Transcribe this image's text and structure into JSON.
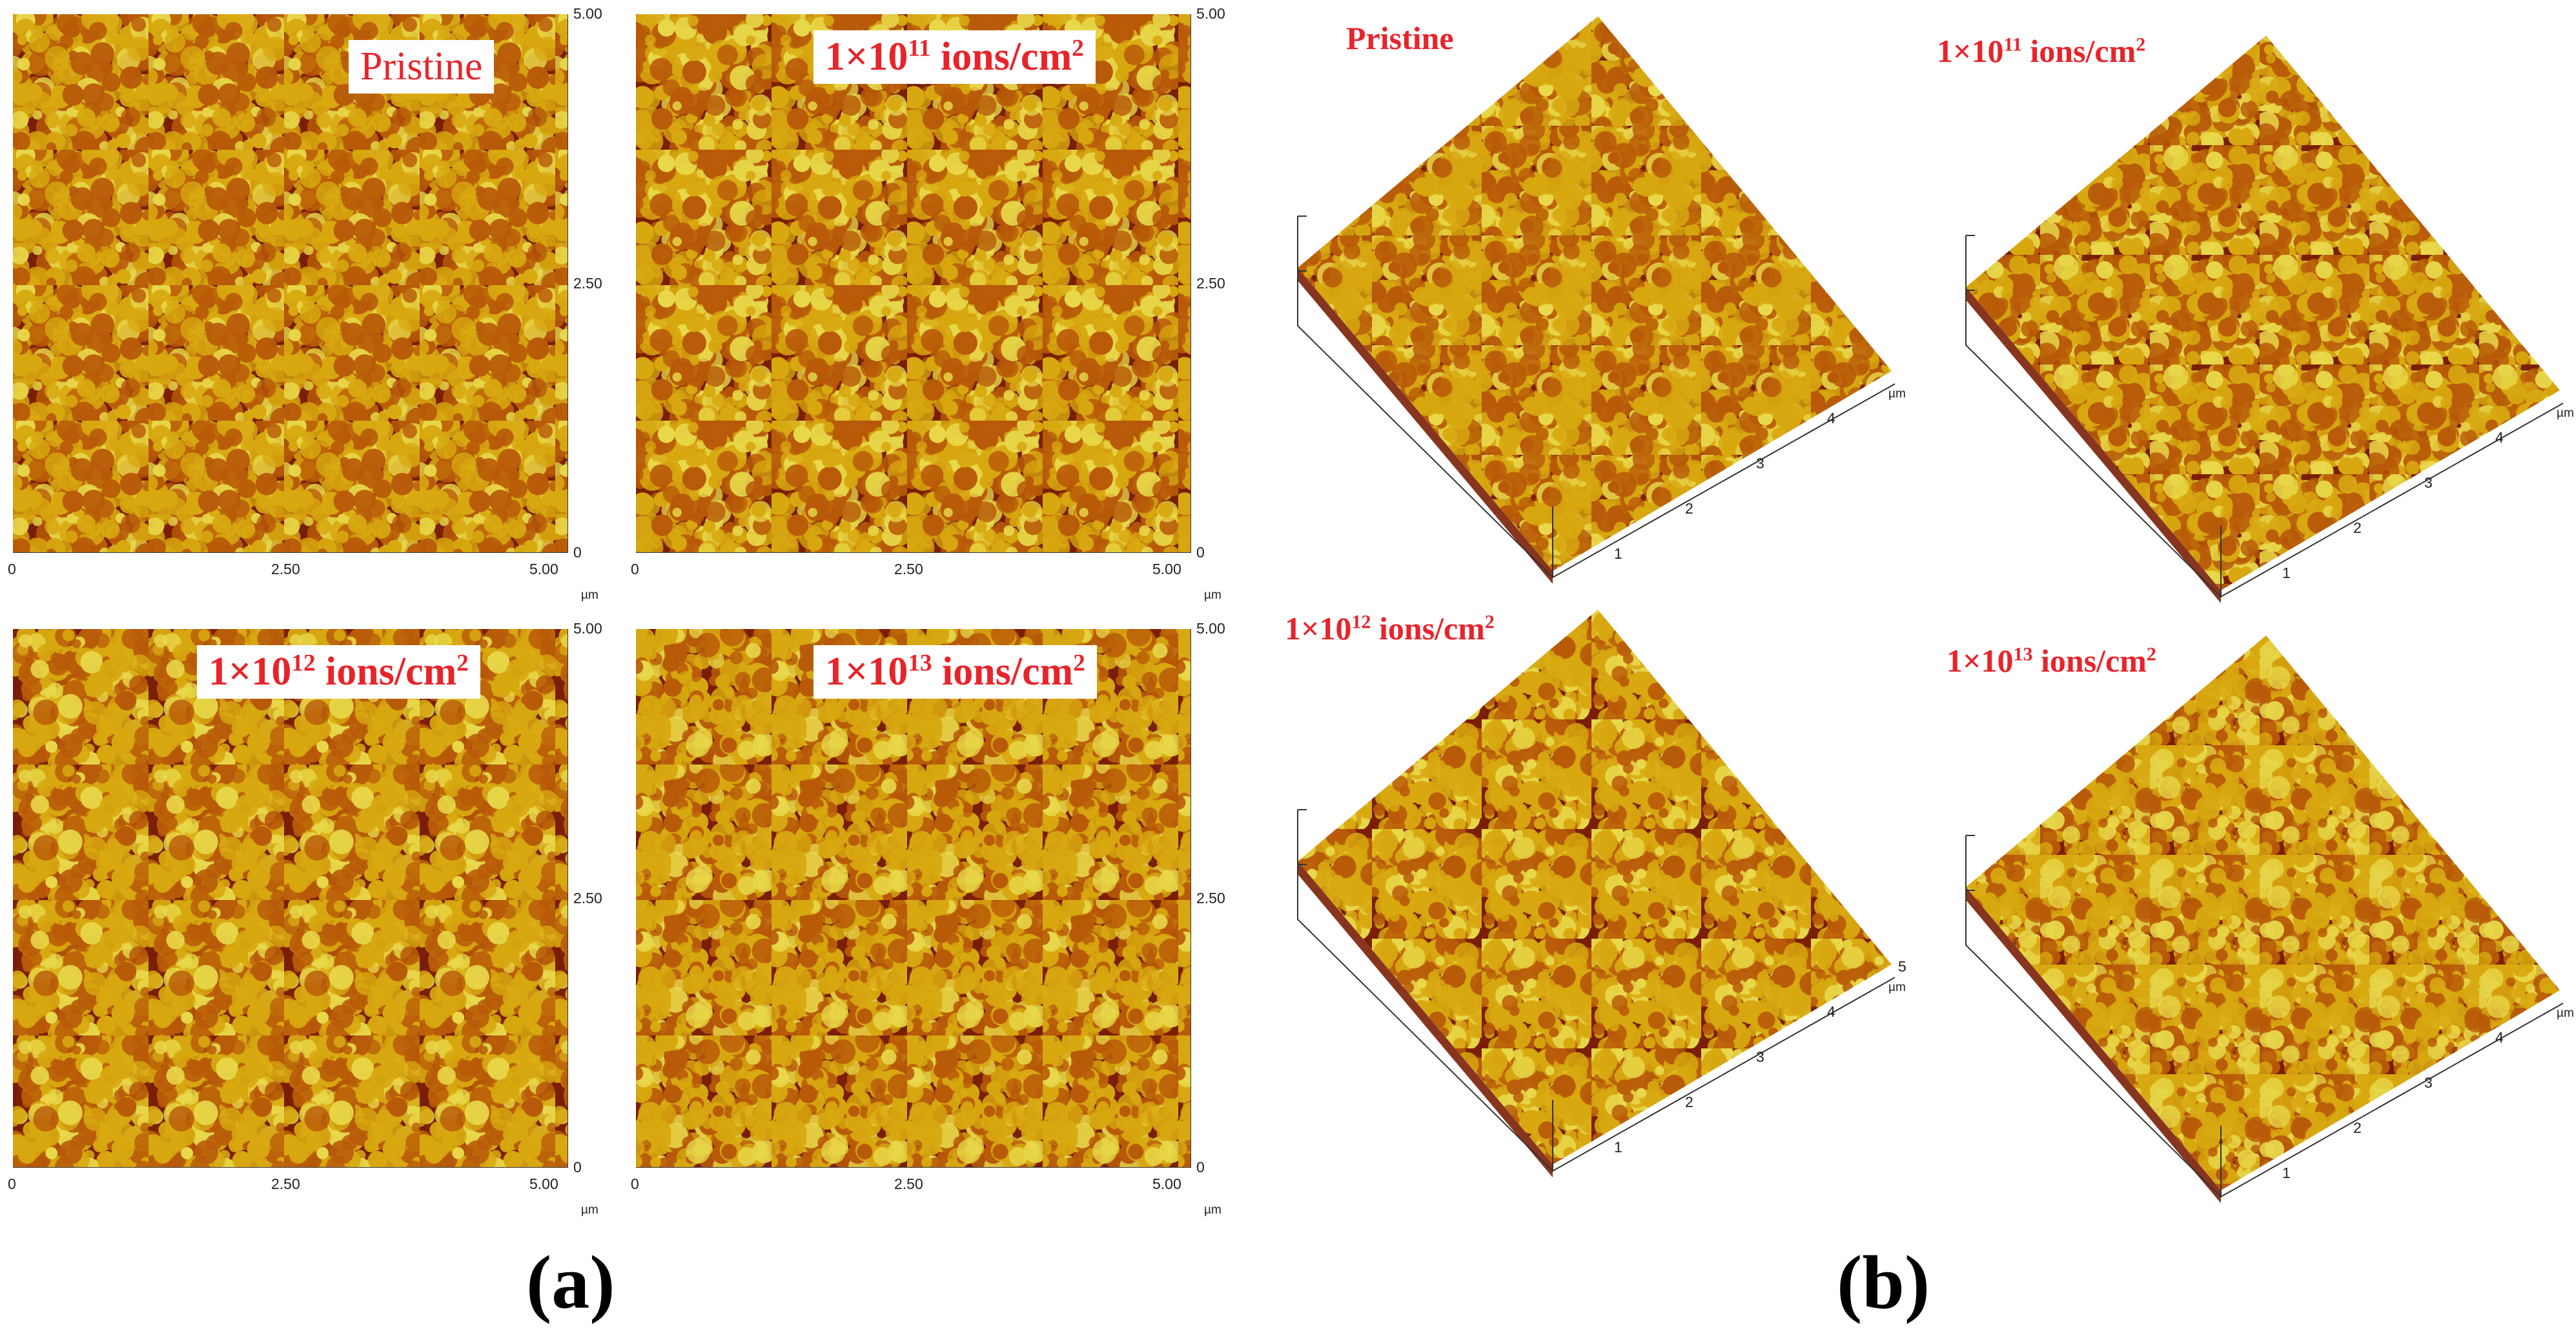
{
  "panels": {
    "a": {
      "letter": "(a)",
      "maps": [
        {
          "label": {
            "base": "Pristine"
          }
        },
        {
          "label": {
            "base": "1×10",
            "exp": "11",
            "tail": " ions/cm",
            "tail_exp": "2"
          }
        },
        {
          "label": {
            "base": "1×10",
            "exp": "12",
            "tail": " ions/cm",
            "tail_exp": "2"
          }
        },
        {
          "label": {
            "base": "1×10",
            "exp": "13",
            "tail": " ions/cm",
            "tail_exp": "2"
          }
        }
      ],
      "axis": {
        "x_ticks": [
          "0",
          "2.50",
          "5.00"
        ],
        "y_ticks": [
          "0",
          "2.50",
          "5.00"
        ],
        "unit": "µm"
      }
    },
    "b": {
      "letter": "(b)",
      "surfaces": [
        {
          "label": {
            "base": "Pristine"
          }
        },
        {
          "label": {
            "base": "1×10",
            "exp": "11",
            "tail": " ions/cm",
            "tail_exp": "2"
          }
        },
        {
          "label": {
            "base": "1×10",
            "exp": "12",
            "tail": " ions/cm",
            "tail_exp": "2"
          }
        },
        {
          "label": {
            "base": "1×10",
            "exp": "13",
            "tail": " ions/cm",
            "tail_exp": "2"
          }
        }
      ],
      "axis": {
        "ticks": [
          "1",
          "2",
          "3",
          "4",
          "5"
        ],
        "unit": "µm"
      }
    }
  },
  "colors": {
    "dark": "#7a1f05",
    "mid": "#b85a08",
    "light": "#d8a810",
    "peak": "#e8d84a",
    "label": "#e8242b"
  }
}
